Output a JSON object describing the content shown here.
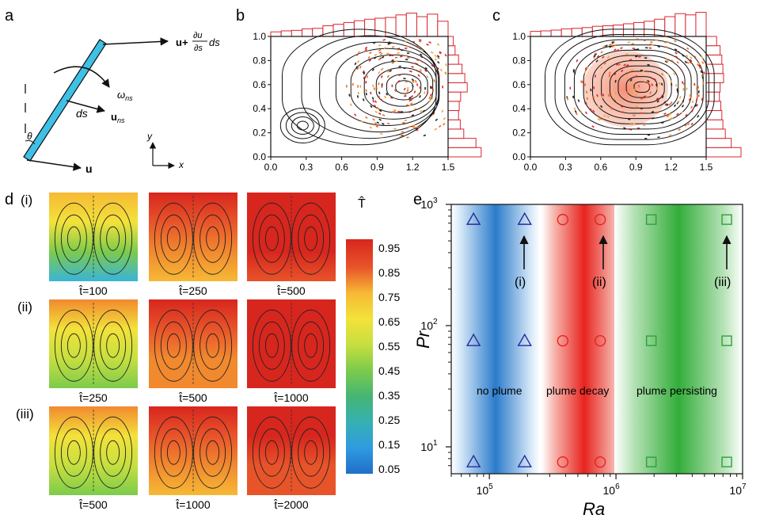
{
  "panel_labels": {
    "a": "a",
    "b": "b",
    "c": "c",
    "d": "d",
    "e": "e"
  },
  "panel_a": {
    "top_label_prefix": "u+",
    "top_label_frac_num": "∂u",
    "top_label_frac_den": "∂s",
    "top_label_suffix": "ds",
    "omega": "ω",
    "omega_sub": "ns",
    "ds": "ds",
    "u_ns": "u",
    "u_ns_sub": "ns",
    "theta": "θ",
    "u": "u",
    "axis_y": "y",
    "axis_x": "x"
  },
  "panel_b": {
    "x_ticks": [
      "0.0",
      "0.3",
      "0.6",
      "0.9",
      "1.2",
      "1.5"
    ],
    "y_ticks": [
      "0.0",
      "0.2",
      "0.4",
      "0.6",
      "0.8",
      "1.0"
    ],
    "top_hist": [
      0.18,
      0.22,
      0.24,
      0.3,
      0.32,
      0.42,
      0.48,
      0.55,
      0.62,
      0.68,
      0.72,
      0.75,
      0.85,
      0.92,
      0.78,
      0.88,
      0.6
    ],
    "right_hist": [
      0.95,
      0.8,
      0.45,
      0.35,
      0.3,
      0.32,
      0.36,
      0.55,
      0.48,
      0.4,
      0.3,
      0.2,
      0.15
    ]
  },
  "panel_c": {
    "x_ticks": [
      "0.0",
      "0.3",
      "0.6",
      "0.9",
      "1.2",
      "1.5"
    ],
    "y_ticks": [
      "0.0",
      "0.2",
      "0.4",
      "0.6",
      "0.8",
      "1.0"
    ],
    "top_hist": [
      0.2,
      0.22,
      0.25,
      0.3,
      0.32,
      0.35,
      0.4,
      0.42,
      0.45,
      0.5,
      0.55,
      0.6,
      0.68,
      0.78,
      0.9,
      0.85,
      0.95
    ],
    "right_hist": [
      1.0,
      0.72,
      0.55,
      0.48,
      0.45,
      0.42,
      0.38,
      0.4,
      0.5,
      0.48,
      0.45,
      0.4,
      0.3
    ]
  },
  "panel_d": {
    "row_labels": [
      "(i)",
      "(ii)",
      "(iii)"
    ],
    "time_labels": [
      [
        "t̂=100",
        "t̂=250",
        "t̂=500"
      ],
      [
        "t̂=250",
        "t̂=500",
        "t̂=1000"
      ],
      [
        "t̂=500",
        "t̂=1000",
        "t̂=2000"
      ]
    ],
    "colorbar_title": "T̂",
    "colorbar_ticks": [
      "0.95",
      "0.85",
      "0.75",
      "0.65",
      "0.55",
      "0.45",
      "0.35",
      "0.25",
      "0.15",
      "0.05"
    ],
    "colorbar_colors": [
      "#d7261e",
      "#e8542a",
      "#f1892f",
      "#f6b935",
      "#f3e23a",
      "#c6df3f",
      "#7ccb4c",
      "#45b573",
      "#36b0b3",
      "#2f9be0",
      "#1f6fc9"
    ]
  },
  "panel_e": {
    "ylabel": "Pr",
    "xlabel": "Ra",
    "x_tick_bases": [
      "10",
      "10",
      "10"
    ],
    "x_tick_exps": [
      "5",
      "6",
      "7"
    ],
    "y_tick_bases": [
      "10",
      "10",
      "10"
    ],
    "y_tick_exps": [
      "1",
      "2",
      "3"
    ],
    "regions": [
      "no plume",
      "plume decay",
      "plume persisting"
    ],
    "arrow_labels": [
      "(i)",
      "(ii)",
      "(iii)"
    ],
    "colors": {
      "blue": "#2878c8",
      "red": "#e8231e",
      "green": "#2aa33a",
      "triangle": "#2a2a9a",
      "circle": "#e8231e",
      "square": "#2aa33a"
    }
  },
  "chart_data": {
    "type": "scatter",
    "xlabel": "Ra",
    "ylabel": "Pr",
    "x_scale": "log",
    "y_scale": "log",
    "xlim": [
      50000,
      10000000
    ],
    "ylim": [
      6,
      1000
    ],
    "series": [
      {
        "name": "no plume",
        "marker": "triangle",
        "x": [
          75000,
          190000,
          75000,
          190000,
          75000,
          190000
        ],
        "y": [
          750,
          750,
          75,
          75,
          7.5,
          7.5
        ]
      },
      {
        "name": "plume decay",
        "marker": "circle",
        "x": [
          380000,
          750000,
          380000,
          750000,
          380000,
          750000
        ],
        "y": [
          750,
          750,
          75,
          75,
          7.5,
          7.5
        ]
      },
      {
        "name": "plume persisting",
        "marker": "square",
        "x": [
          1900000,
          7500000,
          1900000,
          7500000,
          1900000,
          7500000
        ],
        "y": [
          750,
          750,
          75,
          75,
          7.5,
          7.5
        ]
      }
    ]
  }
}
